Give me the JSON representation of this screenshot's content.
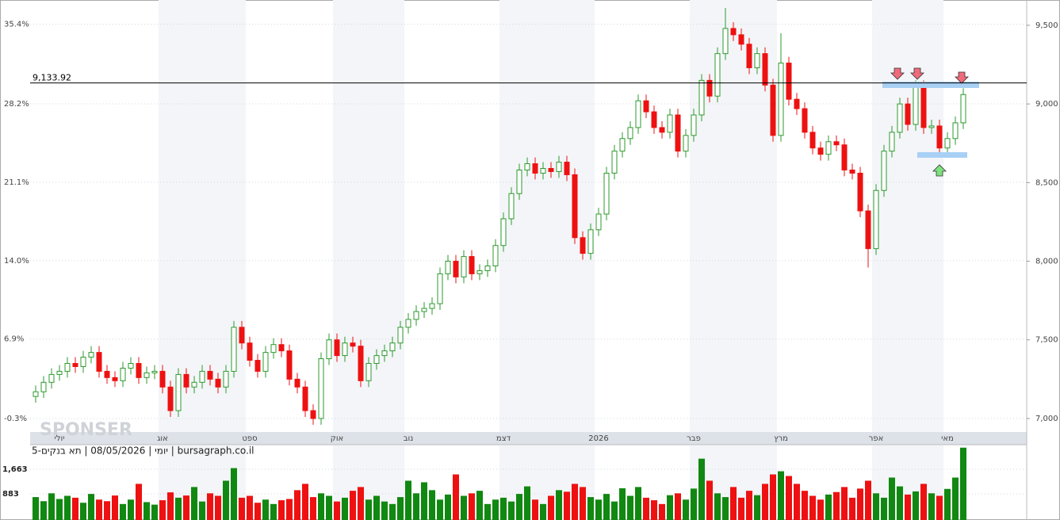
{
  "chart_data": {
    "type": "candlestick",
    "categories": [
      null,
      null,
      null,
      "יולי",
      null,
      null,
      null,
      null,
      null,
      null,
      null,
      null,
      null,
      null,
      null,
      null,
      "אוג",
      null,
      null,
      null,
      null,
      null,
      null,
      null,
      null,
      null,
      null,
      "ספט",
      null,
      null,
      null,
      null,
      null,
      null,
      null,
      null,
      null,
      null,
      "אוק",
      null,
      null,
      null,
      null,
      null,
      null,
      null,
      null,
      "נוב",
      null,
      null,
      null,
      null,
      null,
      null,
      null,
      null,
      null,
      null,
      null,
      "דצמ",
      null,
      null,
      null,
      null,
      null,
      null,
      null,
      null,
      null,
      null,
      null,
      "2026",
      null,
      null,
      null,
      null,
      null,
      null,
      null,
      null,
      null,
      null,
      null,
      "פבר",
      null,
      null,
      null,
      null,
      null,
      null,
      null,
      null,
      null,
      null,
      "מרץ",
      null,
      null,
      null,
      null,
      null,
      null,
      null,
      null,
      null,
      null,
      null,
      "אפר",
      null,
      null,
      null,
      null,
      null,
      null,
      null,
      null,
      "מאי",
      null,
      null
    ],
    "open": [
      7140,
      7170,
      7230,
      7280,
      7300,
      7350,
      7330,
      7390,
      7420,
      7300,
      7260,
      7240,
      7320,
      7350,
      7260,
      7290,
      7300,
      7200,
      7050,
      7280,
      7200,
      7230,
      7300,
      7250,
      7200,
      7300,
      7580,
      7480,
      7370,
      7300,
      7420,
      7470,
      7430,
      7250,
      7200,
      7050,
      7000,
      7380,
      7500,
      7400,
      7480,
      7460,
      7240,
      7350,
      7400,
      7430,
      7480,
      7580,
      7630,
      7680,
      7700,
      7730,
      7920,
      8000,
      7900,
      8030,
      7920,
      7940,
      7970,
      8100,
      8270,
      8430,
      8580,
      8620,
      8560,
      8590,
      8570,
      8630,
      8550,
      8150,
      8050,
      8200,
      8300,
      8560,
      8700,
      8780,
      8850,
      9020,
      8950,
      8850,
      8820,
      8930,
      8700,
      8800,
      8930,
      9150,
      9050,
      9320,
      9480,
      9440,
      9380,
      9230,
      9320,
      9120,
      8800,
      9260,
      9030,
      8970,
      8820,
      8720,
      8680,
      8760,
      8740,
      8580,
      8560,
      8320,
      8080,
      8450,
      8700,
      8820,
      9000,
      8870,
      9110,
      8850,
      8860,
      8720,
      8780,
      8880
    ],
    "high": [
      7210,
      7270,
      7320,
      7340,
      7390,
      7390,
      7430,
      7460,
      7460,
      7340,
      7300,
      7360,
      7390,
      7390,
      7330,
      7340,
      7340,
      7240,
      7320,
      7320,
      7270,
      7340,
      7340,
      7290,
      7340,
      7620,
      7620,
      7520,
      7410,
      7460,
      7510,
      7510,
      7470,
      7290,
      7240,
      7090,
      7420,
      7540,
      7540,
      7520,
      7520,
      7500,
      7390,
      7440,
      7470,
      7520,
      7620,
      7670,
      7720,
      7740,
      7770,
      7960,
      8040,
      8040,
      8070,
      8070,
      7980,
      8010,
      8140,
      8310,
      8470,
      8620,
      8660,
      8660,
      8630,
      8630,
      8670,
      8670,
      8590,
      8190,
      8240,
      8340,
      8600,
      8740,
      8820,
      8890,
      9060,
      9060,
      8990,
      8890,
      8970,
      8970,
      8840,
      8970,
      9190,
      9190,
      9360,
      9610,
      9520,
      9480,
      9420,
      9360,
      9360,
      9160,
      9450,
      9300,
      9070,
      9010,
      8860,
      8760,
      8800,
      8800,
      8780,
      8620,
      8600,
      8360,
      8490,
      8740,
      8860,
      9040,
      9040,
      9150,
      9150,
      8900,
      8900,
      8820,
      8920,
      9100
    ],
    "low": [
      7100,
      7130,
      7190,
      7240,
      7260,
      7290,
      7290,
      7350,
      7260,
      7220,
      7200,
      7200,
      7280,
      7220,
      7220,
      7250,
      7160,
      7010,
      7010,
      7160,
      7160,
      7190,
      7210,
      7160,
      7160,
      7260,
      7440,
      7330,
      7260,
      7260,
      7380,
      7390,
      7210,
      7160,
      7010,
      6960,
      6960,
      7340,
      7360,
      7360,
      7420,
      7200,
      7200,
      7310,
      7360,
      7390,
      7440,
      7540,
      7590,
      7640,
      7660,
      7690,
      7880,
      7860,
      7860,
      7880,
      7880,
      7900,
      7930,
      8060,
      8230,
      8390,
      8540,
      8520,
      8520,
      8530,
      8530,
      8510,
      8110,
      8010,
      8010,
      8160,
      8260,
      8520,
      8660,
      8740,
      8810,
      8910,
      8810,
      8780,
      8780,
      8660,
      8660,
      8760,
      8890,
      9010,
      9010,
      9280,
      9400,
      9340,
      9190,
      9190,
      9080,
      8760,
      8760,
      8990,
      8930,
      8780,
      8680,
      8640,
      8640,
      8700,
      8540,
      8520,
      8280,
      7960,
      8040,
      8410,
      8660,
      8780,
      8830,
      8830,
      8810,
      8810,
      8680,
      8680,
      8740,
      8840
    ],
    "close": [
      7170,
      7230,
      7280,
      7300,
      7350,
      7330,
      7390,
      7420,
      7300,
      7260,
      7240,
      7320,
      7350,
      7260,
      7290,
      7300,
      7200,
      7050,
      7280,
      7200,
      7230,
      7300,
      7250,
      7200,
      7300,
      7580,
      7480,
      7370,
      7300,
      7420,
      7470,
      7430,
      7250,
      7200,
      7050,
      7000,
      7380,
      7500,
      7400,
      7480,
      7460,
      7240,
      7350,
      7400,
      7430,
      7480,
      7580,
      7630,
      7680,
      7700,
      7730,
      7920,
      8000,
      7900,
      8030,
      7920,
      7940,
      7970,
      8100,
      8270,
      8430,
      8580,
      8620,
      8560,
      8590,
      8570,
      8630,
      8550,
      8150,
      8050,
      8200,
      8300,
      8560,
      8700,
      8780,
      8850,
      9020,
      8950,
      8850,
      8820,
      8930,
      8700,
      8800,
      8930,
      9150,
      9050,
      9320,
      9480,
      9440,
      9380,
      9230,
      9320,
      9120,
      8800,
      9260,
      9030,
      8970,
      8820,
      8720,
      8680,
      8760,
      8740,
      8580,
      8560,
      8320,
      8080,
      8450,
      8700,
      8820,
      9000,
      8870,
      9110,
      8850,
      8860,
      8720,
      8780,
      8880,
      9060
    ],
    "volume": [
      780,
      650,
      900,
      720,
      820,
      760,
      600,
      880,
      700,
      650,
      830,
      560,
      700,
      1200,
      620,
      540,
      680,
      930,
      760,
      830,
      1100,
      640,
      900,
      820,
      1300,
      1700,
      760,
      820,
      600,
      700,
      560,
      680,
      720,
      1000,
      1200,
      780,
      900,
      820,
      640,
      760,
      980,
      1100,
      700,
      820,
      640,
      560,
      780,
      1300,
      900,
      1250,
      1000,
      700,
      860,
      1500,
      820,
      900,
      980,
      560,
      700,
      760,
      640,
      880,
      1120,
      700,
      560,
      820,
      1000,
      950,
      1200,
      1100,
      780,
      700,
      880,
      640,
      1060,
      820,
      1100,
      760,
      680,
      560,
      840,
      900,
      700,
      1050,
      2000,
      1300,
      900,
      780,
      1100,
      760,
      980,
      840,
      1200,
      1500,
      1600,
      1450,
      1200,
      980,
      820,
      700,
      860,
      940,
      1100,
      760,
      1050,
      1300,
      900,
      760,
      1400,
      1120,
      860,
      960,
      1200,
      900,
      820,
      1040,
      1400,
      2350
    ],
    "up_color": "#2e9a2e",
    "down_color": "#ee1111",
    "ylim": [
      6914,
      9661
    ],
    "yticks": [
      {
        "value": 7000,
        "label": "7,000"
      },
      {
        "value": 7500,
        "label": "7,500"
      },
      {
        "value": 8000,
        "label": "8,000"
      },
      {
        "value": 8500,
        "label": "8,500"
      },
      {
        "value": 9000,
        "label": "9,000"
      },
      {
        "value": 9500,
        "label": "9,500"
      }
    ],
    "y2lim": [
      -1.52,
      37.6
    ],
    "y2ticks": [
      {
        "value": -0.3,
        "label": "-0.3%"
      },
      {
        "value": 6.9,
        "label": "6.9%"
      },
      {
        "value": 14.0,
        "label": "14.0%"
      },
      {
        "value": 21.1,
        "label": "21.1%"
      },
      {
        "value": 28.2,
        "label": "28.2%"
      },
      {
        "value": 35.4,
        "label": "35.4%"
      }
    ],
    "grid": true,
    "reference_line": {
      "value": 9133.92,
      "label": "9,133.92"
    },
    "volume_ylim": [
      52,
      2419
    ],
    "volume_yticks": [
      883,
      {
        "value": 1663,
        "label": "1,663"
      }
    ],
    "source": "יומי | 08/05/2026 | תא בנקים-5 | bursagraph.co.il",
    "watermark": "SPONSER"
  }
}
